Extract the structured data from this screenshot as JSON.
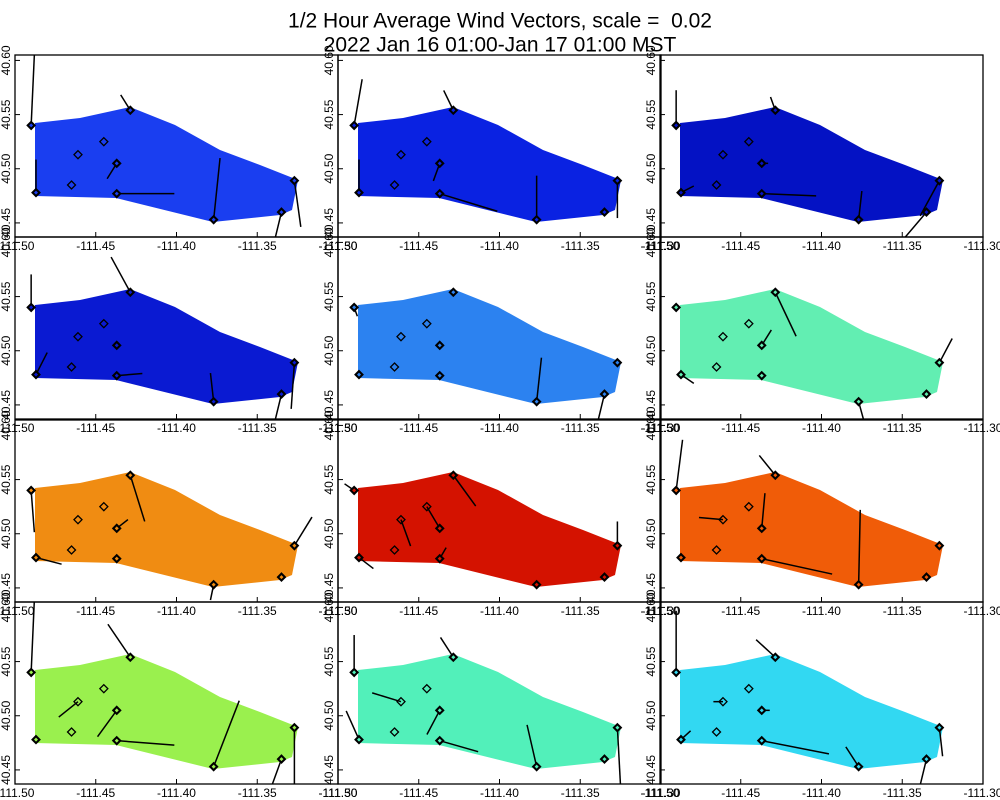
{
  "header": {
    "title": [
      "1/2 Hour Average Wind Vectors, scale =  0.02",
      "2022 Jan 16 01:00-Jan 17 01:00 MST"
    ]
  },
  "axes": {
    "xlim": [
      -111.5,
      -111.3
    ],
    "ylim": [
      40.437,
      40.605
    ],
    "xticks": [
      {
        "value": -111.5,
        "label": "-111.50"
      },
      -111.45,
      {
        "value": -111.4,
        "label": "-111.40"
      },
      -111.35,
      {
        "value": -111.3,
        "label": "-111.30"
      }
    ],
    "yticks": [
      40.45,
      {
        "value": 40.5,
        "label": "40.50"
      },
      40.55,
      {
        "value": 40.6,
        "label": "40.60"
      }
    ]
  },
  "stations": {
    "lon": [
      -111.49,
      -111.4286,
      -111.445,
      -111.461,
      -111.437,
      -111.487,
      -111.465,
      -111.437,
      -111.377,
      -111.327,
      -111.335
    ],
    "lat": [
      40.54,
      40.554,
      40.525,
      40.513,
      40.505,
      40.478,
      40.485,
      40.477,
      40.453,
      40.489,
      40.46
    ],
    "open": [
      false,
      false,
      true,
      true,
      false,
      false,
      true,
      false,
      false,
      false,
      false
    ]
  },
  "chart_data": [
    {
      "type": "vector",
      "color": "#1a3ef0",
      "u": [
        0.1,
        -0.3,
        0,
        0,
        -0.3,
        0,
        0,
        1.8,
        0.2,
        0.2,
        -0.2
      ],
      "v": [
        3.2,
        0.7,
        0,
        0,
        -0.7,
        1.5,
        0,
        0,
        2.8,
        -2.1,
        -1.2
      ]
    },
    {
      "type": "vector",
      "color": "#0a22e2",
      "u": [
        0.25,
        -0.3,
        0,
        0,
        -0.2,
        0,
        0,
        1.8,
        0,
        0,
        0
      ],
      "v": [
        2.1,
        0.9,
        0,
        0,
        -0.8,
        1.5,
        0,
        -0.8,
        2,
        -1.7,
        0
      ]
    },
    {
      "type": "vector",
      "color": "#0412c4",
      "u": [
        0,
        -0.15,
        0,
        0,
        0.2,
        0.4,
        0,
        1.7,
        0.1,
        -0.6,
        -0.7
      ],
      "v": [
        1.6,
        0.6,
        0,
        0,
        0,
        0.3,
        0,
        -0.1,
        1.3,
        -1.6,
        -1.2
      ]
    },
    {
      "type": "vector",
      "color": "#0a1ad2",
      "u": [
        0,
        -0.6,
        0,
        0,
        0,
        0.35,
        0,
        0.8,
        -0.1,
        -0.1,
        -0.2
      ],
      "v": [
        1.5,
        1.6,
        0,
        0,
        0,
        1,
        0,
        0.1,
        1.3,
        -2.1,
        -1.2
      ]
    },
    {
      "type": "vector",
      "color": "#2c82f0",
      "u": [
        0.1,
        0,
        0,
        0,
        0,
        0,
        0,
        0,
        0.15,
        0,
        -0.2
      ],
      "v": [
        -0.4,
        0,
        0,
        0,
        0,
        0,
        0,
        0,
        2,
        0,
        -1.2
      ]
    },
    {
      "type": "vector",
      "color": "#62eeb2",
      "u": [
        0,
        0.65,
        0,
        0,
        0.3,
        0.4,
        0,
        0,
        0.15,
        0.4,
        0
      ],
      "v": [
        0,
        -2,
        0,
        0,
        0.7,
        -0.4,
        0,
        0,
        -0.8,
        1.1,
        0
      ]
    },
    {
      "type": "vector",
      "color": "#f08c12",
      "u": [
        0.1,
        0.45,
        0,
        0,
        0.35,
        0.8,
        0,
        0,
        -0.1,
        0.55,
        0
      ],
      "v": [
        -1.9,
        -2.1,
        0,
        0,
        0.4,
        -0.3,
        0,
        0,
        -0.7,
        1.3,
        0
      ]
    },
    {
      "type": "vector",
      "color": "#d41200",
      "u": [
        -0.3,
        0.7,
        0.45,
        0.3,
        0,
        0.45,
        0,
        0.2,
        0,
        0,
        0
      ],
      "v": [
        0.3,
        -1.4,
        -1.1,
        -1.2,
        0,
        -0.5,
        0,
        0.5,
        0,
        1.1,
        0
      ]
    },
    {
      "type": "vector",
      "color": "#f05c08",
      "u": [
        0.2,
        -0.5,
        0,
        -0.75,
        0.1,
        0,
        0,
        2.2,
        0.05,
        0,
        0
      ],
      "v": [
        2.3,
        0.9,
        0,
        0.1,
        1.6,
        0,
        0,
        -0.7,
        3.4,
        0,
        0
      ]
    },
    {
      "type": "vector",
      "color": "#9af04e",
      "u": [
        0.1,
        -0.7,
        0,
        -0.6,
        -0.6,
        0,
        0,
        1.8,
        0.8,
        0,
        -0.3
      ],
      "v": [
        3.3,
        1.5,
        0,
        -0.7,
        -1.2,
        0,
        0,
        -0.2,
        3,
        -2.6,
        -1.2
      ]
    },
    {
      "type": "vector",
      "color": "#52f0ba",
      "u": [
        0,
        -0.4,
        0,
        -0.9,
        -0.4,
        -0.4,
        0,
        1.2,
        -0.3,
        0.1,
        0
      ],
      "v": [
        1.7,
        0.9,
        0,
        0.4,
        -1.1,
        1.3,
        0,
        -0.5,
        1.9,
        -2.7,
        0
      ]
    },
    {
      "type": "vector",
      "color": "#32d8f2",
      "u": [
        0,
        -0.6,
        0,
        -0.3,
        0.25,
        0.3,
        0,
        2.1,
        -0.4,
        0.1,
        -0.2
      ],
      "v": [
        2.8,
        0.8,
        0,
        0,
        0,
        0.4,
        0,
        -0.6,
        0.9,
        -1.3,
        -1.2
      ]
    }
  ]
}
